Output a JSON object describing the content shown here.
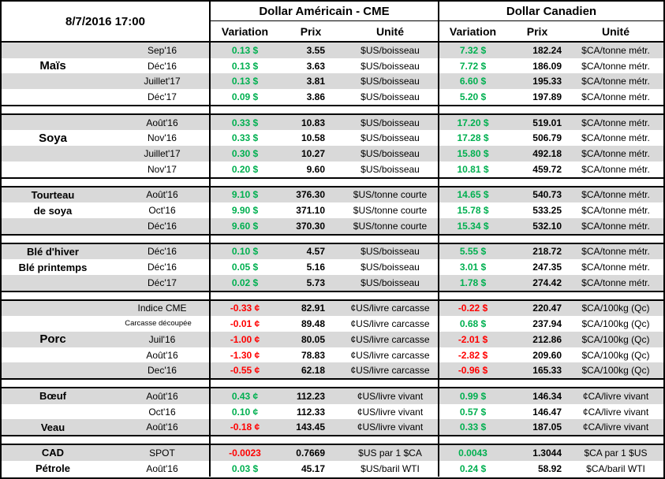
{
  "meta": {
    "date_label": "8/7/2016 17:00"
  },
  "columns": {
    "usd_group": "Dollar Américain - CME",
    "cad_group": "Dollar Canadien",
    "variation": "Variation",
    "price": "Prix",
    "unit": "Unité"
  },
  "colors": {
    "positive": "#00B050",
    "negative": "#FF0000",
    "row_stripe": "#D9D9D9",
    "border": "#000000"
  },
  "sections": [
    {
      "commodity": "Maïs",
      "rows": [
        {
          "name": "",
          "month": "Sep'16",
          "us_var": "0.13 $",
          "us_sign": "pos",
          "us_price": "3.55",
          "us_unit": "$US/boisseau",
          "ca_var": "7.32 $",
          "ca_sign": "pos",
          "ca_price": "182.24",
          "ca_unit": "$CA/tonne métr."
        },
        {
          "name": "Maïs",
          "name_big": true,
          "month": "Déc'16",
          "us_var": "0.13 $",
          "us_sign": "pos",
          "us_price": "3.63",
          "us_unit": "$US/boisseau",
          "ca_var": "7.72 $",
          "ca_sign": "pos",
          "ca_price": "186.09",
          "ca_unit": "$CA/tonne métr."
        },
        {
          "name": "",
          "month": "Juillet'17",
          "us_var": "0.13 $",
          "us_sign": "pos",
          "us_price": "3.81",
          "us_unit": "$US/boisseau",
          "ca_var": "6.60 $",
          "ca_sign": "pos",
          "ca_price": "195.33",
          "ca_unit": "$CA/tonne métr."
        },
        {
          "name": "",
          "month": "Déc'17",
          "us_var": "0.09 $",
          "us_sign": "pos",
          "us_price": "3.86",
          "us_unit": "$US/boisseau",
          "ca_var": "5.20 $",
          "ca_sign": "pos",
          "ca_price": "197.89",
          "ca_unit": "$CA/tonne métr."
        }
      ]
    },
    {
      "commodity": "Soya",
      "rows": [
        {
          "name": "",
          "month": "Août'16",
          "us_var": "0.33 $",
          "us_sign": "pos",
          "us_price": "10.83",
          "us_unit": "$US/boisseau",
          "ca_var": "17.20 $",
          "ca_sign": "pos",
          "ca_price": "519.01",
          "ca_unit": "$CA/tonne métr."
        },
        {
          "name": "Soya",
          "name_big": true,
          "month": "Nov'16",
          "us_var": "0.33 $",
          "us_sign": "pos",
          "us_price": "10.58",
          "us_unit": "$US/boisseau",
          "ca_var": "17.28 $",
          "ca_sign": "pos",
          "ca_price": "506.79",
          "ca_unit": "$CA/tonne métr."
        },
        {
          "name": "",
          "month": "Juillet'17",
          "us_var": "0.30 $",
          "us_sign": "pos",
          "us_price": "10.27",
          "us_unit": "$US/boisseau",
          "ca_var": "15.80 $",
          "ca_sign": "pos",
          "ca_price": "492.18",
          "ca_unit": "$CA/tonne métr."
        },
        {
          "name": "",
          "month": "Nov'17",
          "us_var": "0.20 $",
          "us_sign": "pos",
          "us_price": "9.60",
          "us_unit": "$US/boisseau",
          "ca_var": "10.81 $",
          "ca_sign": "pos",
          "ca_price": "459.72",
          "ca_unit": "$CA/tonne métr."
        }
      ]
    },
    {
      "commodity": "Tourteau de soya",
      "rows": [
        {
          "name": "Tourteau",
          "month": "Août'16",
          "us_var": "9.10 $",
          "us_sign": "pos",
          "us_price": "376.30",
          "us_unit": "$US/tonne courte",
          "ca_var": "14.65 $",
          "ca_sign": "pos",
          "ca_price": "540.73",
          "ca_unit": "$CA/tonne métr."
        },
        {
          "name": "de soya",
          "month": "Oct'16",
          "us_var": "9.90 $",
          "us_sign": "pos",
          "us_price": "371.10",
          "us_unit": "$US/tonne courte",
          "ca_var": "15.78 $",
          "ca_sign": "pos",
          "ca_price": "533.25",
          "ca_unit": "$CA/tonne métr."
        },
        {
          "name": "",
          "month": "Déc'16",
          "us_var": "9.60 $",
          "us_sign": "pos",
          "us_price": "370.30",
          "us_unit": "$US/tonne courte",
          "ca_var": "15.34 $",
          "ca_sign": "pos",
          "ca_price": "532.10",
          "ca_unit": "$CA/tonne métr."
        }
      ]
    },
    {
      "commodity": "Blé d'hiver / Blé printemps",
      "rows": [
        {
          "name": "Blé d'hiver",
          "month": "Déc'16",
          "us_var": "0.10 $",
          "us_sign": "pos",
          "us_price": "4.57",
          "us_unit": "$US/boisseau",
          "ca_var": "5.55 $",
          "ca_sign": "pos",
          "ca_price": "218.72",
          "ca_unit": "$CA/tonne métr."
        },
        {
          "name": "Blé printemps",
          "month": "Déc'16",
          "us_var": "0.05 $",
          "us_sign": "pos",
          "us_price": "5.16",
          "us_unit": "$US/boisseau",
          "ca_var": "3.01 $",
          "ca_sign": "pos",
          "ca_price": "247.35",
          "ca_unit": "$CA/tonne métr."
        },
        {
          "name": "",
          "month": "Déc'17",
          "us_var": "0.02 $",
          "us_sign": "pos",
          "us_price": "5.73",
          "us_unit": "$US/boisseau",
          "ca_var": "1.78 $",
          "ca_sign": "pos",
          "ca_price": "274.42",
          "ca_unit": "$CA/tonne métr."
        }
      ]
    },
    {
      "commodity": "Porc",
      "rows": [
        {
          "name": "",
          "month": "Indice CME",
          "us_var": "-0.33 ¢",
          "us_sign": "neg",
          "us_price": "82.91",
          "us_unit": "¢US/livre carcasse",
          "ca_var": "-0.22 $",
          "ca_sign": "neg",
          "ca_price": "220.47",
          "ca_unit": "$CA/100kg (Qc)"
        },
        {
          "name": "",
          "month": "Carcasse découpée",
          "month_small": true,
          "us_var": "-0.01 ¢",
          "us_sign": "neg",
          "us_price": "89.48",
          "us_unit": "¢US/livre carcasse",
          "ca_var": "0.68 $",
          "ca_sign": "pos",
          "ca_price": "237.94",
          "ca_unit": "$CA/100kg (Qc)"
        },
        {
          "name": "Porc",
          "name_big": true,
          "month": "Juil'16",
          "us_var": "-1.00 ¢",
          "us_sign": "neg",
          "us_price": "80.05",
          "us_unit": "¢US/livre carcasse",
          "ca_var": "-2.01 $",
          "ca_sign": "neg",
          "ca_price": "212.86",
          "ca_unit": "$CA/100kg (Qc)"
        },
        {
          "name": "",
          "month": "Août'16",
          "us_var": "-1.30 ¢",
          "us_sign": "neg",
          "us_price": "78.83",
          "us_unit": "¢US/livre carcasse",
          "ca_var": "-2.82 $",
          "ca_sign": "neg",
          "ca_price": "209.60",
          "ca_unit": "$CA/100kg (Qc)"
        },
        {
          "name": "",
          "month": "Dec'16",
          "us_var": "-0.55 ¢",
          "us_sign": "neg",
          "us_price": "62.18",
          "us_unit": "¢US/livre carcasse",
          "ca_var": "-0.96 $",
          "ca_sign": "neg",
          "ca_price": "165.33",
          "ca_unit": "$CA/100kg (Qc)"
        }
      ]
    },
    {
      "commodity": "Bœuf / Veau",
      "rows": [
        {
          "name": "Bœuf",
          "month": "Août'16",
          "us_var": "0.43 ¢",
          "us_sign": "pos",
          "us_price": "112.23",
          "us_unit": "¢US/livre vivant",
          "ca_var": "0.99 $",
          "ca_sign": "pos",
          "ca_price": "146.34",
          "ca_unit": "¢CA/livre vivant"
        },
        {
          "name": "",
          "month": "Oct'16",
          "us_var": "0.10 ¢",
          "us_sign": "pos",
          "us_price": "112.33",
          "us_unit": "¢US/livre vivant",
          "ca_var": "0.57 $",
          "ca_sign": "pos",
          "ca_price": "146.47",
          "ca_unit": "¢CA/livre vivant"
        },
        {
          "name": "Veau",
          "month": "Août'16",
          "us_var": "-0.18 ¢",
          "us_sign": "neg",
          "us_price": "143.45",
          "us_unit": "¢US/livre vivant",
          "ca_var": "0.33 $",
          "ca_sign": "pos",
          "ca_price": "187.05",
          "ca_unit": "¢CA/livre vivant"
        }
      ]
    },
    {
      "commodity": "CAD / Pétrole",
      "rows": [
        {
          "name": "CAD",
          "month": "SPOT",
          "us_var": "-0.0023",
          "us_sign": "neg",
          "us_price": "0.7669",
          "us_unit": "$US par 1 $CA",
          "ca_var": "0.0043",
          "ca_sign": "pos",
          "ca_price": "1.3044",
          "ca_unit": "$CA par 1 $US"
        },
        {
          "name": "Pétrole",
          "month": "Août'16",
          "us_var": "0.03 $",
          "us_sign": "pos",
          "us_price": "45.17",
          "us_unit": "$US/baril WTI",
          "ca_var": "0.24 $",
          "ca_sign": "pos",
          "ca_price": "58.92",
          "ca_unit": "$CA/baril WTI"
        }
      ]
    }
  ]
}
